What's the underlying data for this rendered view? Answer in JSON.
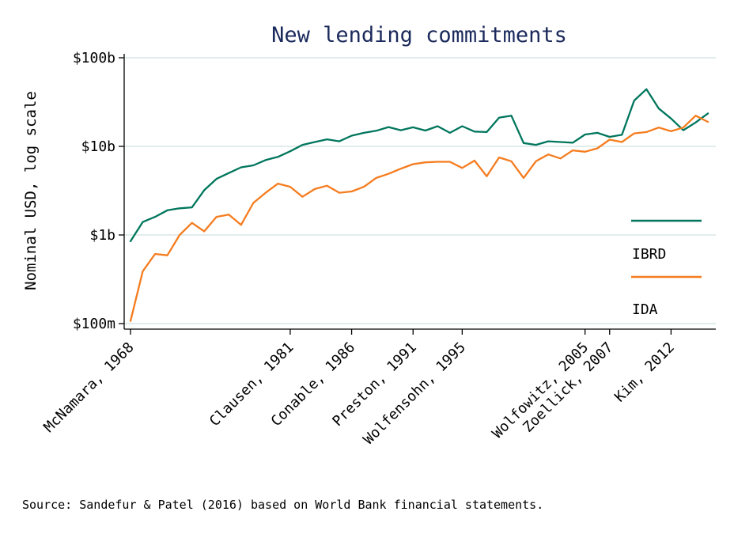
{
  "chart_data": {
    "type": "line",
    "title": "New lending commitments",
    "ylabel": "Nominal USD, log scale",
    "xlabel": "",
    "y_scale": "log",
    "ylim": [
      0.1,
      100
    ],
    "xlim": [
      1968,
      2015
    ],
    "y_ticks": [
      {
        "value": 0.1,
        "label": "$100m"
      },
      {
        "value": 1,
        "label": "$1b"
      },
      {
        "value": 10,
        "label": "$10b"
      },
      {
        "value": 100,
        "label": "$100b"
      }
    ],
    "x_ticks": [
      {
        "value": 1968,
        "label": "McNamara, 1968"
      },
      {
        "value": 1981,
        "label": "Clausen, 1981"
      },
      {
        "value": 1986,
        "label": "Conable, 1986"
      },
      {
        "value": 1991,
        "label": "Preston, 1991"
      },
      {
        "value": 1995,
        "label": "Wolfensohn, 1995"
      },
      {
        "value": 2005,
        "label": "Wolfowitz, 2005"
      },
      {
        "value": 2007,
        "label": "Zoellick, 2007"
      },
      {
        "value": 2012,
        "label": "Kim, 2012"
      }
    ],
    "grid": "horizontal",
    "legend_position": "right",
    "series": [
      {
        "name": "IBRD",
        "color": "#00765d",
        "x": [
          1968,
          1969,
          1970,
          1971,
          1972,
          1973,
          1974,
          1975,
          1976,
          1977,
          1978,
          1979,
          1980,
          1981,
          1982,
          1983,
          1984,
          1985,
          1986,
          1987,
          1988,
          1989,
          1990,
          1991,
          1992,
          1993,
          1994,
          1995,
          1996,
          1997,
          1998,
          1999,
          2000,
          2001,
          2002,
          2003,
          2004,
          2005,
          2006,
          2007,
          2008,
          2009,
          2010,
          2011,
          2012,
          2013,
          2014,
          2015
        ],
        "values": [
          0.85,
          1.4,
          1.6,
          1.9,
          2.0,
          2.05,
          3.2,
          4.3,
          5.0,
          5.8,
          6.1,
          7.0,
          7.6,
          8.8,
          10.4,
          11.2,
          12.0,
          11.4,
          13.2,
          14.2,
          15.0,
          16.5,
          15.2,
          16.4,
          15.1,
          16.9,
          14.2,
          16.9,
          14.7,
          14.5,
          21.1,
          22.2,
          10.9,
          10.4,
          11.4,
          11.2,
          11.0,
          13.6,
          14.2,
          12.8,
          13.5,
          32.9,
          44.2,
          26.7,
          20.6,
          15.2,
          18.6,
          23.5
        ]
      },
      {
        "name": "IDA",
        "color": "#f57c1f",
        "x": [
          1968,
          1969,
          1970,
          1971,
          1972,
          1973,
          1974,
          1975,
          1976,
          1977,
          1978,
          1979,
          1980,
          1981,
          1982,
          1983,
          1984,
          1985,
          1986,
          1987,
          1988,
          1989,
          1990,
          1991,
          1992,
          1993,
          1994,
          1995,
          1996,
          1997,
          1998,
          1999,
          2000,
          2001,
          2002,
          2003,
          2004,
          2005,
          2006,
          2007,
          2008,
          2009,
          2010,
          2011,
          2012,
          2013,
          2014,
          2015
        ],
        "values": [
          0.107,
          0.39,
          0.61,
          0.59,
          1.0,
          1.37,
          1.1,
          1.6,
          1.7,
          1.3,
          2.3,
          3.0,
          3.8,
          3.5,
          2.7,
          3.3,
          3.6,
          3.0,
          3.1,
          3.5,
          4.4,
          4.9,
          5.6,
          6.3,
          6.6,
          6.7,
          6.7,
          5.7,
          6.9,
          4.6,
          7.5,
          6.8,
          4.4,
          6.8,
          8.1,
          7.3,
          9.0,
          8.7,
          9.5,
          11.9,
          11.2,
          14.0,
          14.5,
          16.3,
          14.8,
          16.3,
          22.2,
          18.9
        ]
      }
    ]
  },
  "source_note": "Source: Sandefur & Patel (2016) based on World Bank financial statements."
}
